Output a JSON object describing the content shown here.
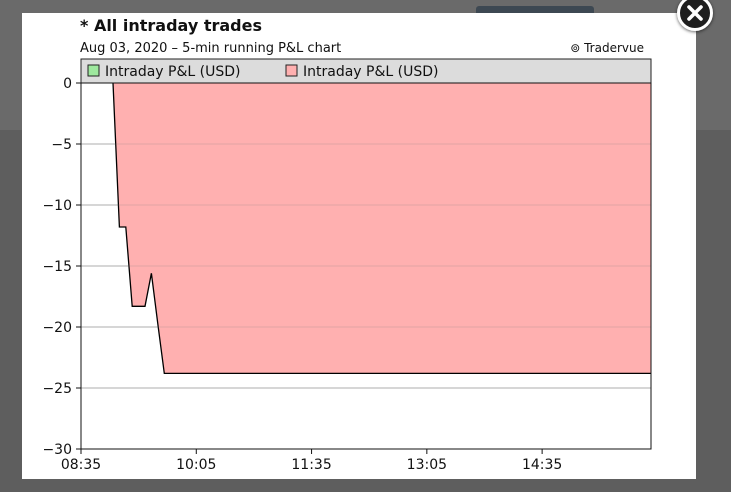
{
  "modal": {
    "close_icon": "close-icon"
  },
  "chart_data": {
    "type": "area",
    "title": "* All intraday trades",
    "subtitle": "Aug 03, 2020 – 5-min running P&L chart",
    "watermark": "⊚ Tradervue",
    "legend": {
      "placement": "top",
      "entries": [
        {
          "label": "Intraday P&L (USD)",
          "color": "#9ee89e"
        },
        {
          "label": "Intraday P&L (USD)",
          "color": "#ffb0b0"
        }
      ]
    },
    "xlabel": "",
    "ylabel": "",
    "xlim": [
      "08:35",
      "16:00"
    ],
    "ylim": [
      -30,
      0
    ],
    "x_ticks": [
      "08:35",
      "10:05",
      "11:35",
      "13:05",
      "14:35"
    ],
    "y_ticks": [
      0,
      -5,
      -10,
      -15,
      -20,
      -25,
      -30
    ],
    "grid": true,
    "series": [
      {
        "name": "Intraday P&L (USD)",
        "color": "#ffb0b0",
        "stroke": "#000000",
        "x": [
          "09:00",
          "09:05",
          "09:10",
          "09:15",
          "09:20",
          "09:25",
          "09:30",
          "09:35",
          "09:40",
          "09:45",
          "16:00"
        ],
        "y": [
          0,
          -11.8,
          -11.8,
          -18.3,
          -18.3,
          -18.3,
          -15.6,
          -19.8,
          -23.8,
          -23.8,
          -23.8
        ]
      }
    ]
  }
}
